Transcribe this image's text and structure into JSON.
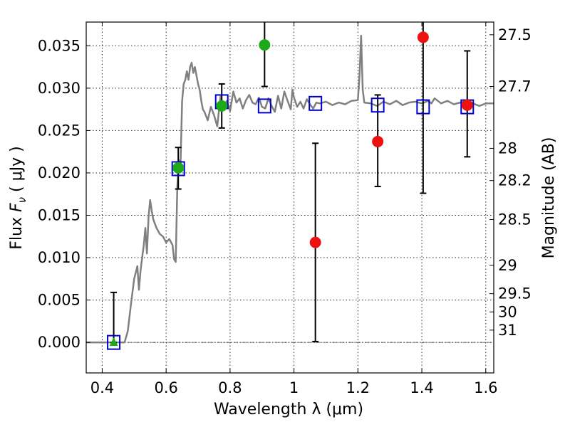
{
  "chart_data": {
    "type": "scatter",
    "title": "",
    "xlabel": "Wavelength  λ (μm)",
    "ylabel_parts": {
      "pre": "Flux  ",
      "var": "F",
      "sub": "ν",
      "post": "  ( μJy )"
    },
    "ylabel_right": "Magnitude (AB)",
    "xlim": [
      0.35,
      1.625
    ],
    "ylim": [
      -0.0036,
      0.0378
    ],
    "grid": true,
    "x_ticks": [
      {
        "value": 0.4,
        "label": "0.4"
      },
      {
        "value": 0.6,
        "label": "0.6"
      },
      {
        "value": 0.8,
        "label": "0.8"
      },
      {
        "value": 1.0,
        "label": "1"
      },
      {
        "value": 1.2,
        "label": "1.2"
      },
      {
        "value": 1.4,
        "label": "1.4"
      },
      {
        "value": 1.6,
        "label": "1.6"
      }
    ],
    "y_ticks": [
      {
        "value": 0.0,
        "label": "0.000"
      },
      {
        "value": 0.005,
        "label": "0.005"
      },
      {
        "value": 0.01,
        "label": "0.010"
      },
      {
        "value": 0.015,
        "label": "0.015"
      },
      {
        "value": 0.02,
        "label": "0.020"
      },
      {
        "value": 0.025,
        "label": "0.025"
      },
      {
        "value": 0.03,
        "label": "0.030"
      },
      {
        "value": 0.035,
        "label": "0.035"
      }
    ],
    "mag_ticks": [
      {
        "label": "27.5",
        "flux": 0.0363
      },
      {
        "label": "27.7",
        "flux": 0.0302
      },
      {
        "label": "28",
        "flux": 0.0229
      },
      {
        "label": "28.2",
        "flux": 0.0191
      },
      {
        "label": "28.5",
        "flux": 0.0145
      },
      {
        "label": "29",
        "flux": 0.0091
      },
      {
        "label": "29.5",
        "flux": 0.00575
      },
      {
        "label": "30",
        "flux": 0.0036
      },
      {
        "label": "31",
        "flux": 0.00145
      }
    ],
    "model_spectrum": {
      "color": "#808080",
      "x": [
        0.35,
        0.46,
        0.47,
        0.48,
        0.49,
        0.5,
        0.51,
        0.515,
        0.52,
        0.53,
        0.535,
        0.54,
        0.545,
        0.55,
        0.555,
        0.56,
        0.57,
        0.58,
        0.59,
        0.6,
        0.61,
        0.62,
        0.625,
        0.63,
        0.635,
        0.64,
        0.645,
        0.65,
        0.655,
        0.66,
        0.665,
        0.67,
        0.675,
        0.68,
        0.685,
        0.69,
        0.7,
        0.705,
        0.71,
        0.715,
        0.72,
        0.73,
        0.74,
        0.75,
        0.76,
        0.77,
        0.78,
        0.79,
        0.8,
        0.81,
        0.82,
        0.83,
        0.84,
        0.85,
        0.86,
        0.87,
        0.88,
        0.89,
        0.9,
        0.91,
        0.92,
        0.93,
        0.94,
        0.95,
        0.96,
        0.97,
        0.98,
        0.99,
        0.995,
        1.0,
        1.01,
        1.02,
        1.03,
        1.04,
        1.05,
        1.06,
        1.07,
        1.08,
        1.1,
        1.12,
        1.14,
        1.16,
        1.18,
        1.2,
        1.205,
        1.21,
        1.215,
        1.22,
        1.24,
        1.26,
        1.28,
        1.3,
        1.32,
        1.34,
        1.36,
        1.38,
        1.4,
        1.42,
        1.43,
        1.44,
        1.46,
        1.48,
        1.5,
        1.52,
        1.54,
        1.56,
        1.58,
        1.6,
        1.625
      ],
      "y": [
        0.0,
        0.0,
        0.0,
        0.0013,
        0.0045,
        0.0075,
        0.009,
        0.0062,
        0.0085,
        0.0115,
        0.0135,
        0.0105,
        0.0148,
        0.0168,
        0.0155,
        0.0145,
        0.0135,
        0.0128,
        0.0125,
        0.0118,
        0.0122,
        0.0115,
        0.0098,
        0.0095,
        0.0185,
        0.0215,
        0.0208,
        0.0285,
        0.0305,
        0.031,
        0.032,
        0.031,
        0.0325,
        0.033,
        0.0318,
        0.0325,
        0.0305,
        0.0298,
        0.0285,
        0.0275,
        0.0272,
        0.0262,
        0.0278,
        0.0268,
        0.0255,
        0.029,
        0.0278,
        0.0285,
        0.0273,
        0.0296,
        0.0283,
        0.0288,
        0.0276,
        0.0286,
        0.0292,
        0.0283,
        0.0281,
        0.0289,
        0.0278,
        0.0276,
        0.0288,
        0.0279,
        0.0272,
        0.0291,
        0.0276,
        0.0296,
        0.0285,
        0.0275,
        0.0298,
        0.0289,
        0.0278,
        0.0284,
        0.0276,
        0.0287,
        0.0281,
        0.0276,
        0.0283,
        0.0282,
        0.0284,
        0.028,
        0.0283,
        0.0281,
        0.0285,
        0.0286,
        0.0315,
        0.0362,
        0.0298,
        0.0283,
        0.0282,
        0.0279,
        0.0284,
        0.0281,
        0.0285,
        0.028,
        0.0283,
        0.0284,
        0.0282,
        0.0285,
        0.0282,
        0.0288,
        0.0282,
        0.0285,
        0.0281,
        0.0283,
        0.0285,
        0.0282,
        0.0279,
        0.0282,
        0.0282
      ]
    },
    "series": [
      {
        "marker": "open-square",
        "color": "#0000cc",
        "points": [
          {
            "x": 0.436,
            "y": 0.0
          },
          {
            "x": 0.638,
            "y": 0.0205
          },
          {
            "x": 0.774,
            "y": 0.0284
          },
          {
            "x": 0.908,
            "y": 0.0279
          },
          {
            "x": 1.067,
            "y": 0.0282
          },
          {
            "x": 1.262,
            "y": 0.028
          },
          {
            "x": 1.404,
            "y": 0.0278
          },
          {
            "x": 1.542,
            "y": 0.0278
          }
        ]
      },
      {
        "marker": "circle",
        "color": "#1aaa1a",
        "points": [
          {
            "x": 0.638,
            "y": 0.0206,
            "err": [
              0.0181,
              0.023
            ]
          },
          {
            "x": 0.774,
            "y": 0.0279,
            "err": [
              0.0253,
              0.0305
            ]
          },
          {
            "x": 0.908,
            "y": 0.0351,
            "err": [
              0.0302,
              0.0378
            ]
          }
        ]
      },
      {
        "marker": "triangle",
        "color": "#1aaa1a",
        "points": [
          {
            "x": 0.436,
            "y": 0.0,
            "err": [
              0.0,
              0.0059
            ]
          }
        ]
      },
      {
        "marker": "circle",
        "color": "#ee1111",
        "points": [
          {
            "x": 1.067,
            "y": 0.0118,
            "err": [
              0.0001,
              0.0235
            ]
          },
          {
            "x": 1.262,
            "y": 0.0237,
            "err": [
              0.0184,
              0.0292
            ]
          },
          {
            "x": 1.404,
            "y": 0.036,
            "err": [
              0.0176,
              0.0378
            ]
          },
          {
            "x": 1.542,
            "y": 0.028,
            "err": [
              0.0219,
              0.0344
            ]
          }
        ]
      }
    ]
  }
}
